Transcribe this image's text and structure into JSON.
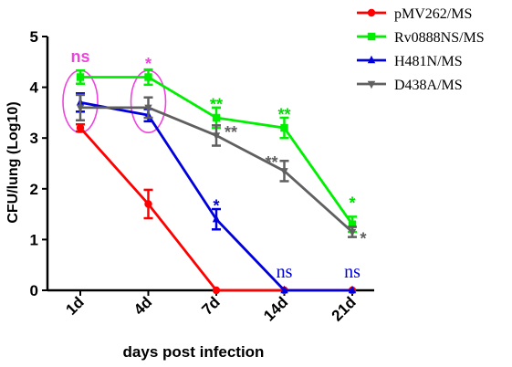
{
  "chart_data": {
    "type": "line",
    "title": "",
    "xlabel": "days post infection",
    "ylabel": "CFU/lung (Log10)",
    "categories": [
      "1d",
      "4d",
      "7d",
      "14d",
      "21d"
    ],
    "ylim": [
      0,
      5
    ],
    "yticks": [
      "0",
      "1",
      "2",
      "3",
      "4",
      "5"
    ],
    "legend_position": "top-right",
    "series": [
      {
        "name": "pMV262/MS",
        "color": "#ff0000",
        "marker": "circle",
        "values": [
          3.2,
          1.7,
          0.0,
          0.0,
          0.0
        ],
        "err": [
          0.07,
          0.28,
          0,
          0,
          0
        ]
      },
      {
        "name": "Rv0888NS/MS",
        "color": "#00ee00",
        "marker": "square",
        "values": [
          4.2,
          4.2,
          3.4,
          3.2,
          1.3
        ],
        "err": [
          0.13,
          0.15,
          0.2,
          0.2,
          0.15
        ]
      },
      {
        "name": "H481N/MS",
        "color": "#0000dd",
        "marker": "triangle-up",
        "values": [
          3.7,
          3.45,
          1.4,
          0.0,
          0.0
        ],
        "err": [
          0.18,
          0.12,
          0.2,
          0,
          0
        ]
      },
      {
        "name": "D438A/MS",
        "color": "#606060",
        "marker": "triangle-down",
        "values": [
          3.6,
          3.6,
          3.05,
          2.35,
          1.15
        ],
        "err": [
          0.25,
          0.2,
          0.2,
          0.2,
          0.1
        ]
      }
    ],
    "annotations": [
      {
        "text": "ns",
        "category": "1d",
        "y": 4.5,
        "color": "#ee44dd"
      },
      {
        "text": "*",
        "category": "4d",
        "y": 4.5,
        "color": "#ee44dd"
      },
      {
        "text": "**",
        "category": "7d",
        "y": 3.7,
        "color": "#00dd00"
      },
      {
        "text": "**",
        "category": "7d",
        "y": 3.15,
        "color": "#606060"
      },
      {
        "text": "*",
        "category": "7d",
        "y": 1.7,
        "color": "#0000dd"
      },
      {
        "text": "**",
        "category": "14d",
        "y": 3.5,
        "color": "#00dd00"
      },
      {
        "text": "**",
        "category": "14d",
        "y": 2.55,
        "color": "#606060"
      },
      {
        "text": "ns",
        "category": "14d",
        "y": 0.25,
        "color": "#0000dd"
      },
      {
        "text": "*",
        "category": "21d",
        "y": 1.75,
        "color": "#00dd00"
      },
      {
        "text": "*",
        "category": "21d",
        "y": 1.05,
        "color": "#606060"
      },
      {
        "text": "ns",
        "category": "21d",
        "y": 0.25,
        "color": "#0000dd"
      }
    ],
    "highlight_circles": [
      {
        "category": "1d",
        "color": "#ee44dd"
      },
      {
        "category": "4d",
        "color": "#ee44dd"
      }
    ]
  }
}
